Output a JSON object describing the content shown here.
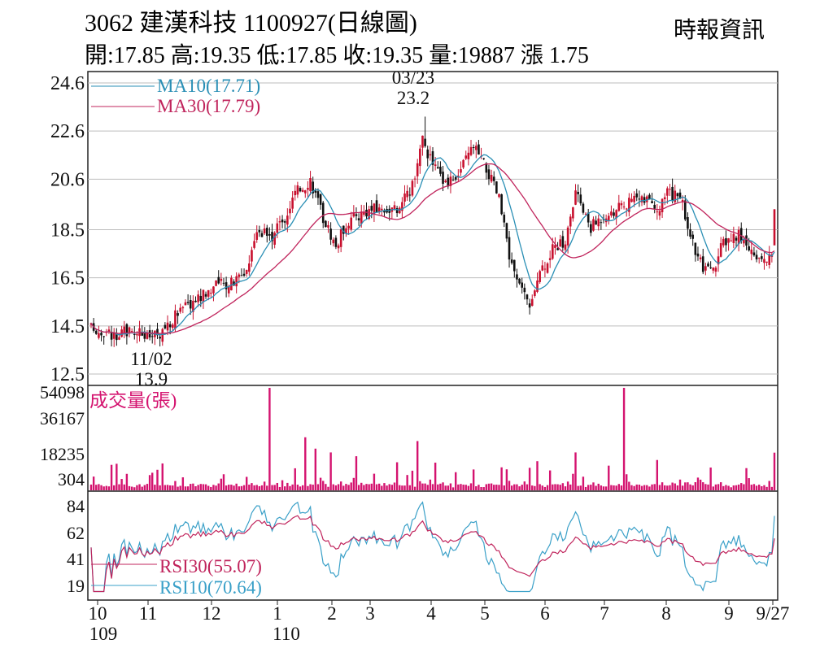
{
  "header": {
    "title": "3062  建漢科技 1100927(日線圖)",
    "source": "時報資訊",
    "summary": "開:17.85 高:19.35 低:17.85 收:19.35 量:19887 漲 1.75"
  },
  "colors": {
    "up": "#c8102e",
    "down": "#111111",
    "ma10": "#2a8fb5",
    "ma30": "#c0245c",
    "volume": "#d4136f",
    "rsi10": "#3aa0c8",
    "rsi30": "#c0245c",
    "grid": "#bdbdbd"
  },
  "chart_data": {
    "type": "candlestick",
    "price_panel": {
      "y_ticks": [
        24.6,
        22.6,
        20.6,
        18.5,
        16.5,
        14.5,
        12.5
      ],
      "ylim": [
        12.5,
        24.6
      ],
      "legend": [
        {
          "key": "ma10",
          "label": "MA10(17.71)"
        },
        {
          "key": "ma30",
          "label": "MA30(17.79)"
        }
      ],
      "annotations": {
        "high": {
          "date": "03/23",
          "value": "23.2"
        },
        "low": {
          "date": "11/02",
          "value": "13.9"
        }
      },
      "last_candle": {
        "open": 17.85,
        "high": 19.35,
        "low": 17.85,
        "close": 19.35
      }
    },
    "volume_panel": {
      "label": "成交量(張)",
      "y_ticks": [
        "54098",
        "36167",
        "18235",
        "304"
      ],
      "ylim": [
        0,
        54098
      ],
      "last_volume": 19887
    },
    "rsi_panel": {
      "y_ticks": [
        "84",
        "62",
        "41",
        "19"
      ],
      "legend": [
        {
          "key": "rsi30",
          "label": "RSI30(55.07)"
        },
        {
          "key": "rsi10",
          "label": "RSI10(70.64)"
        }
      ]
    },
    "x_axis": {
      "months": [
        "10",
        "11",
        "12",
        "1",
        "2",
        "3",
        "4",
        "5",
        "6",
        "7",
        "8",
        "9",
        "9/27"
      ],
      "years": [
        "109",
        "110"
      ]
    }
  }
}
